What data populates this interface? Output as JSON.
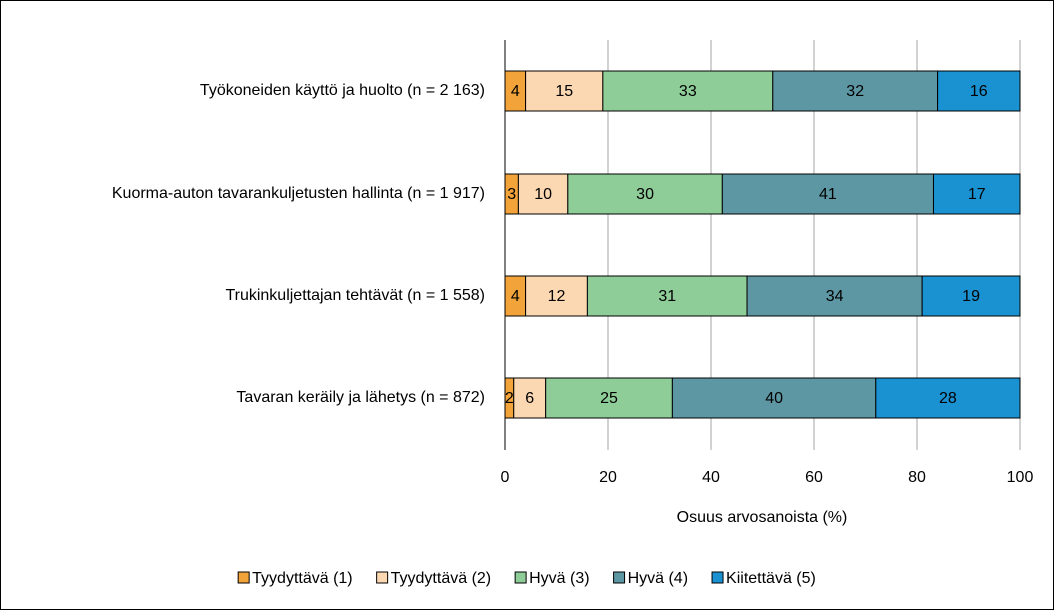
{
  "chart_data": {
    "type": "stacked-barh",
    "categories": [
      "Työkoneiden käyttö ja huolto (n = 2 163)",
      "Kuorma-auton tavarankuljetusten hallinta (n = 1 917)",
      "Trukinkuljettajan tehtävät (n = 1 558)",
      "Tavaran keräily ja lähetys (n = 872)"
    ],
    "series": [
      {
        "name": "Tyydyttävä (1)",
        "color": "#f2a33a",
        "values": [
          4,
          2.6,
          4,
          1.7
        ],
        "value_labels": [
          "4",
          "3",
          "4",
          "2"
        ]
      },
      {
        "name": "Tyydyttävä (2)",
        "color": "#fbd8b2",
        "values": [
          15,
          9.6,
          12,
          6.2
        ],
        "value_labels": [
          "15",
          "10",
          "12",
          "6"
        ]
      },
      {
        "name": "Hyvä (3)",
        "color": "#8fcd98",
        "values": [
          33,
          30,
          31,
          24.6
        ],
        "value_labels": [
          "33",
          "30",
          "31",
          "25"
        ]
      },
      {
        "name": "Hyvä (4)",
        "color": "#5d97a3",
        "values": [
          32,
          41,
          34,
          39.5
        ],
        "value_labels": [
          "32",
          "41",
          "34",
          "40"
        ]
      },
      {
        "name": "Kiitettävä (5)",
        "color": "#1a92d2",
        "values": [
          16,
          16.8,
          19,
          28
        ],
        "value_labels": [
          "16",
          "17",
          "19",
          "28"
        ]
      }
    ],
    "xlabel": "Osuus arvosanoista (%)",
    "xlim": [
      0,
      100
    ],
    "xticks": [
      0,
      20,
      40,
      60,
      80,
      100
    ],
    "grid": true,
    "legend": "bottom"
  }
}
